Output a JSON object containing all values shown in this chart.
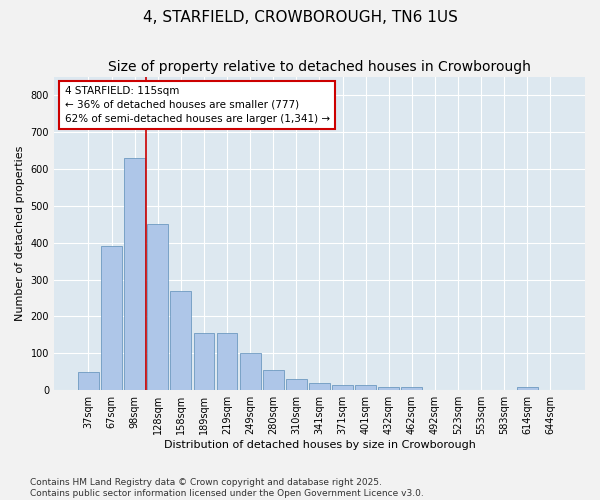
{
  "title": "4, STARFIELD, CROWBOROUGH, TN6 1US",
  "subtitle": "Size of property relative to detached houses in Crowborough",
  "xlabel": "Distribution of detached houses by size in Crowborough",
  "ylabel": "Number of detached properties",
  "categories": [
    "37sqm",
    "67sqm",
    "98sqm",
    "128sqm",
    "158sqm",
    "189sqm",
    "219sqm",
    "249sqm",
    "280sqm",
    "310sqm",
    "341sqm",
    "371sqm",
    "401sqm",
    "432sqm",
    "462sqm",
    "492sqm",
    "523sqm",
    "553sqm",
    "583sqm",
    "614sqm",
    "644sqm"
  ],
  "values": [
    48,
    390,
    630,
    450,
    270,
    155,
    155,
    100,
    55,
    30,
    20,
    13,
    13,
    10,
    10,
    0,
    0,
    0,
    0,
    8,
    0
  ],
  "bar_color": "#aec6e8",
  "bar_edge_color": "#5b8db8",
  "vline_color": "#cc0000",
  "vline_pos": 2.5,
  "annotation_title": "4 STARFIELD: 115sqm",
  "annotation_line1": "← 36% of detached houses are smaller (777)",
  "annotation_line2": "62% of semi-detached houses are larger (1,341) →",
  "annotation_box_facecolor": "#ffffff",
  "annotation_box_edgecolor": "#cc0000",
  "footer_line1": "Contains HM Land Registry data © Crown copyright and database right 2025.",
  "footer_line2": "Contains public sector information licensed under the Open Government Licence v3.0.",
  "ylim": [
    0,
    850
  ],
  "yticks": [
    0,
    100,
    200,
    300,
    400,
    500,
    600,
    700,
    800
  ],
  "fig_background": "#f2f2f2",
  "ax_background": "#dde8f0",
  "grid_color": "#ffffff",
  "title_fontsize": 11,
  "axis_label_fontsize": 8,
  "tick_fontsize": 7,
  "annotation_fontsize": 7.5,
  "footer_fontsize": 6.5
}
